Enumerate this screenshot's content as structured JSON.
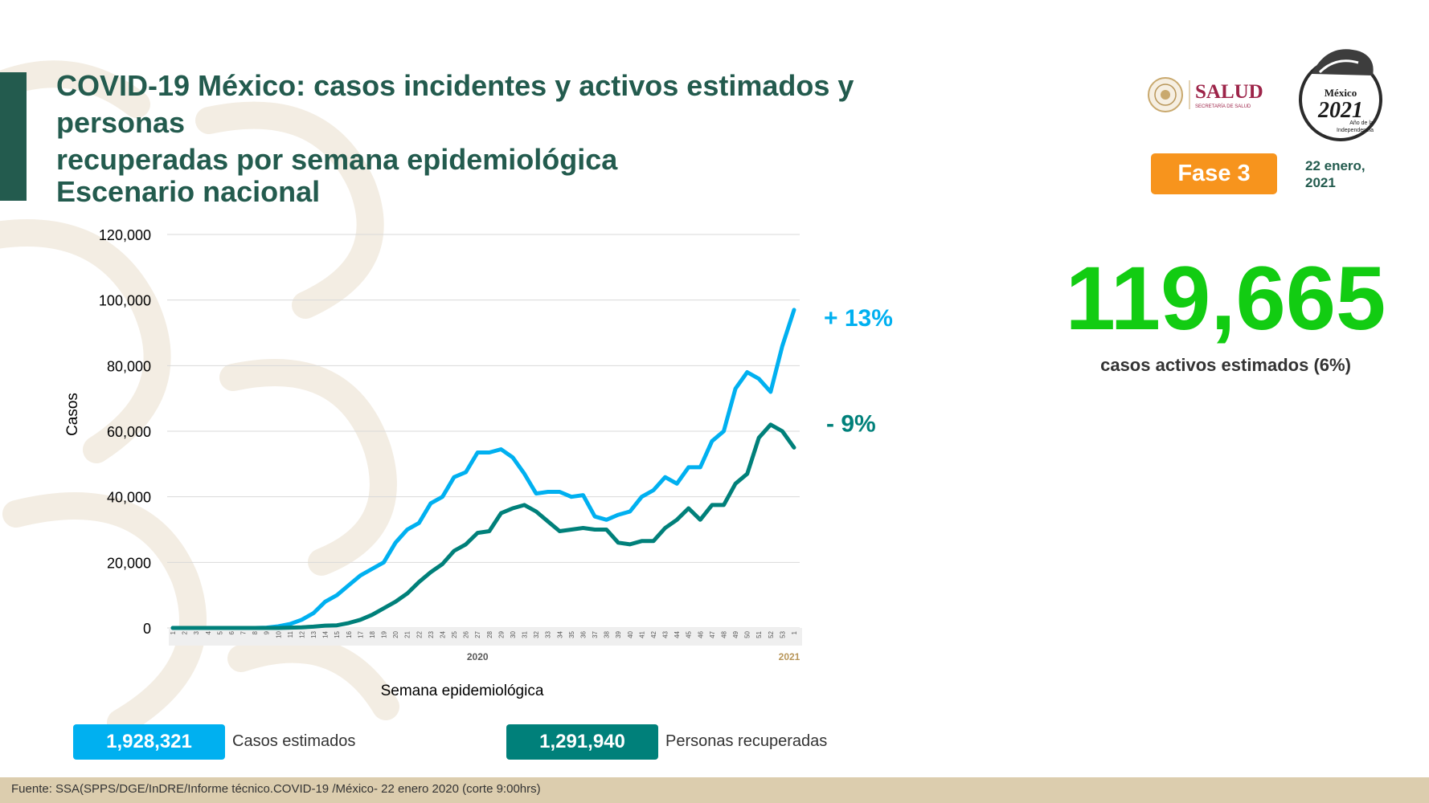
{
  "header": {
    "title_line1": "COVID-19 México: casos incidentes y activos estimados y personas",
    "title_line2": "recuperadas por semana epidemiológica",
    "subtitle": "Escenario nacional"
  },
  "logos": {
    "salud": "SALUD",
    "salud_sub": "SECRETARÍA DE SALUD",
    "emblem_line1": "México",
    "emblem_line2": "2021",
    "emblem_line3": "Año de la",
    "emblem_line4": "Independencia"
  },
  "phase": {
    "label": "Fase 3"
  },
  "date": {
    "line1": "22 enero,",
    "line2": "2021"
  },
  "active_cases": {
    "value": "119,665",
    "caption": "casos activos estimados (6%)"
  },
  "legend": {
    "estimated_value": "1,928,321",
    "estimated_label": "Casos estimados",
    "recovered_value": "1,291,940",
    "recovered_label": "Personas recuperadas"
  },
  "footer": {
    "source": "Fuente: SSA(SPPS/DGE/InDRE/Informe técnico.COVID-19 /México- 22 enero 2020 (corte 9:00hrs)"
  },
  "colors": {
    "brand_green": "#235b4e",
    "estimated": "#00b0f0",
    "recovered": "#00807a",
    "active_number": "#12cc12",
    "phase": "#f7941d",
    "footer_band": "#dccdae"
  },
  "chart_data": {
    "type": "line",
    "xlabel": "Semana epidemiológica",
    "ylabel": "Casos",
    "ylim": [
      0,
      120000
    ],
    "yticks": [
      "0",
      "20,000",
      "40,000",
      "60,000",
      "80,000",
      "100,000",
      "120,000"
    ],
    "grid": true,
    "x": [
      "1",
      "2",
      "3",
      "4",
      "5",
      "6",
      "7",
      "8",
      "9",
      "10",
      "11",
      "12",
      "13",
      "14",
      "15",
      "16",
      "17",
      "18",
      "19",
      "20",
      "21",
      "22",
      "23",
      "24",
      "25",
      "26",
      "27",
      "28",
      "29",
      "30",
      "31",
      "32",
      "33",
      "34",
      "35",
      "36",
      "37",
      "38",
      "39",
      "40",
      "41",
      "42",
      "43",
      "44",
      "45",
      "46",
      "47",
      "48",
      "49",
      "50",
      "51",
      "52",
      "53",
      "1"
    ],
    "year_labels": [
      "2020",
      "2021"
    ],
    "series": [
      {
        "name": "Casos estimados",
        "change_label": "+ 13%",
        "values": [
          0,
          0,
          0,
          0,
          0,
          0,
          0,
          0,
          100,
          500,
          1200,
          2500,
          4500,
          8000,
          10000,
          13000,
          16000,
          18000,
          20000,
          26000,
          30000,
          32000,
          38000,
          40000,
          46000,
          47500,
          53500,
          53500,
          54500,
          52000,
          47000,
          41000,
          41500,
          41500,
          40000,
          40500,
          34000,
          33000,
          34500,
          35500,
          40000,
          42000,
          46000,
          44000,
          49000,
          49000,
          57000,
          60000,
          73000,
          78000,
          76000,
          72000,
          86000,
          97000
        ]
      },
      {
        "name": "Personas recuperadas",
        "change_label": "- 9%",
        "values": [
          0,
          0,
          0,
          0,
          0,
          0,
          0,
          0,
          0,
          0,
          100,
          200,
          400,
          700,
          800,
          1500,
          2500,
          4000,
          6000,
          8000,
          10500,
          14000,
          17000,
          19500,
          23500,
          25500,
          29000,
          29500,
          35000,
          36500,
          37500,
          35500,
          32500,
          29500,
          30000,
          30500,
          30000,
          30000,
          26000,
          25500,
          26500,
          26500,
          30500,
          33000,
          36500,
          33000,
          37500,
          37500,
          44000,
          47000,
          58000,
          62000,
          60000,
          55000
        ]
      }
    ]
  }
}
